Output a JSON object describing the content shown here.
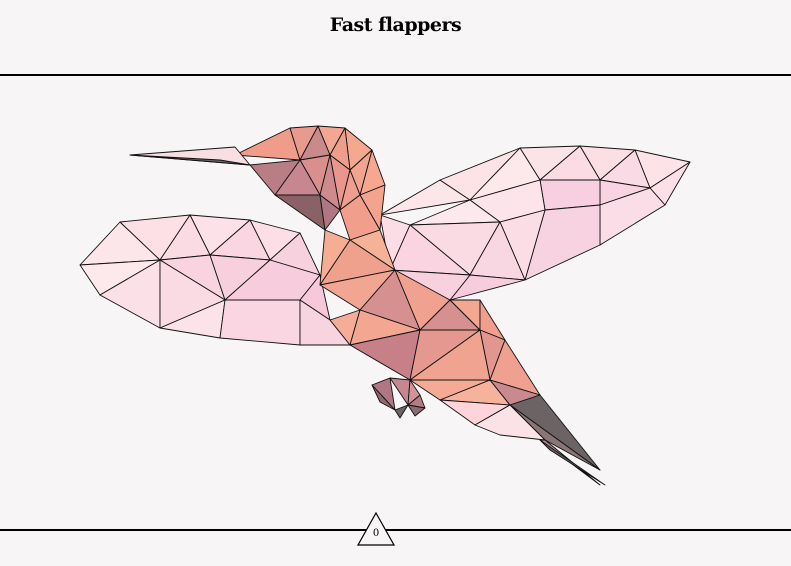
{
  "header": {
    "title": "Fast flappers"
  },
  "illustration": {
    "subject": "hummingbird-icon",
    "style": "low-poly"
  },
  "colors": {
    "background": "#f7f5f6",
    "rule": "#000000",
    "wing_light": "#fde2e6",
    "wing_pink": "#f7c9d9",
    "body_salmon": "#f2a08f",
    "body_dark": "#b47d84",
    "beak_grey": "#6b6364"
  },
  "footer": {
    "badge_value": "0"
  }
}
